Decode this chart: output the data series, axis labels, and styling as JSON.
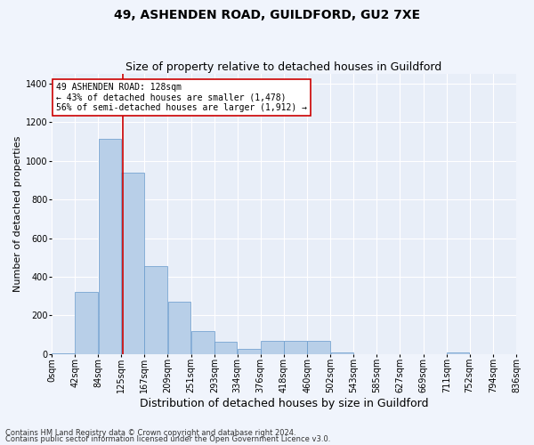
{
  "title": "49, ASHENDEN ROAD, GUILDFORD, GU2 7XE",
  "subtitle": "Size of property relative to detached houses in Guildford",
  "xlabel": "Distribution of detached houses by size in Guildford",
  "ylabel": "Number of detached properties",
  "footnote1": "Contains HM Land Registry data © Crown copyright and database right 2024.",
  "footnote2": "Contains public sector information licensed under the Open Government Licence v3.0.",
  "annotation_line1": "49 ASHENDEN ROAD: 128sqm",
  "annotation_line2": "← 43% of detached houses are smaller (1,478)",
  "annotation_line3": "56% of semi-detached houses are larger (1,912) →",
  "bar_color": "#b8cfe8",
  "bar_edge_color": "#6699cc",
  "vline_color": "#cc0000",
  "vline_x": 128,
  "bins": [
    0,
    42,
    84,
    125,
    167,
    209,
    251,
    293,
    334,
    376,
    418,
    460,
    502,
    543,
    585,
    627,
    669,
    711,
    752,
    794,
    836
  ],
  "bin_labels": [
    "0sqm",
    "42sqm",
    "84sqm",
    "125sqm",
    "167sqm",
    "209sqm",
    "251sqm",
    "293sqm",
    "334sqm",
    "376sqm",
    "418sqm",
    "460sqm",
    "502sqm",
    "543sqm",
    "585sqm",
    "627sqm",
    "669sqm",
    "711sqm",
    "752sqm",
    "794sqm",
    "836sqm"
  ],
  "bar_heights": [
    4,
    320,
    1115,
    940,
    455,
    270,
    120,
    65,
    28,
    70,
    70,
    70,
    8,
    0,
    0,
    0,
    0,
    8,
    0,
    0
  ],
  "ylim": [
    0,
    1450
  ],
  "yticks": [
    0,
    200,
    400,
    600,
    800,
    1000,
    1200,
    1400
  ],
  "background_color": "#e8eef8",
  "grid_color": "#ffffff",
  "fig_bg_color": "#f0f4fc",
  "title_fontsize": 10,
  "subtitle_fontsize": 9,
  "ylabel_fontsize": 8,
  "xlabel_fontsize": 9,
  "tick_fontsize": 7,
  "annotation_fontsize": 7,
  "footnote_fontsize": 6,
  "annotation_box_color": "#ffffff",
  "annotation_box_edge": "#cc0000"
}
